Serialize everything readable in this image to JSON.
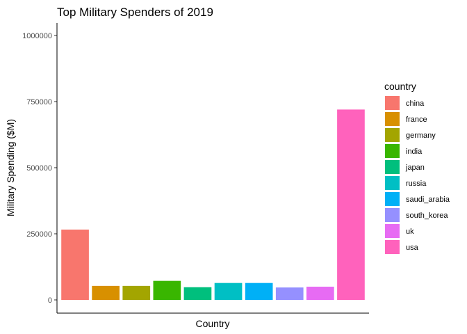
{
  "chart_data": {
    "type": "bar",
    "title": "Top Military Spenders of 2019",
    "xlabel": "Country",
    "ylabel": "Military Spending ($M)",
    "ylim": [
      0,
      1000000
    ],
    "yticks": [
      "0",
      "250000",
      "500000",
      "750000",
      "1000000"
    ],
    "ytick_values": [
      0,
      250000,
      500000,
      750000,
      1000000
    ],
    "grid": false,
    "legend": {
      "title": "country",
      "placement": "right"
    },
    "categories": [
      "china",
      "france",
      "germany",
      "india",
      "japan",
      "russia",
      "saudi_arabia",
      "south_korea",
      "uk",
      "usa"
    ],
    "values": [
      266000,
      53000,
      53000,
      72000,
      48000,
      64000,
      64000,
      47000,
      50000,
      720000
    ],
    "colors": [
      "#F8766D",
      "#D89000",
      "#A3A500",
      "#39B600",
      "#00BF7D",
      "#00BFC4",
      "#00B0F6",
      "#9590FF",
      "#E76BF3",
      "#FF62BC"
    ]
  }
}
